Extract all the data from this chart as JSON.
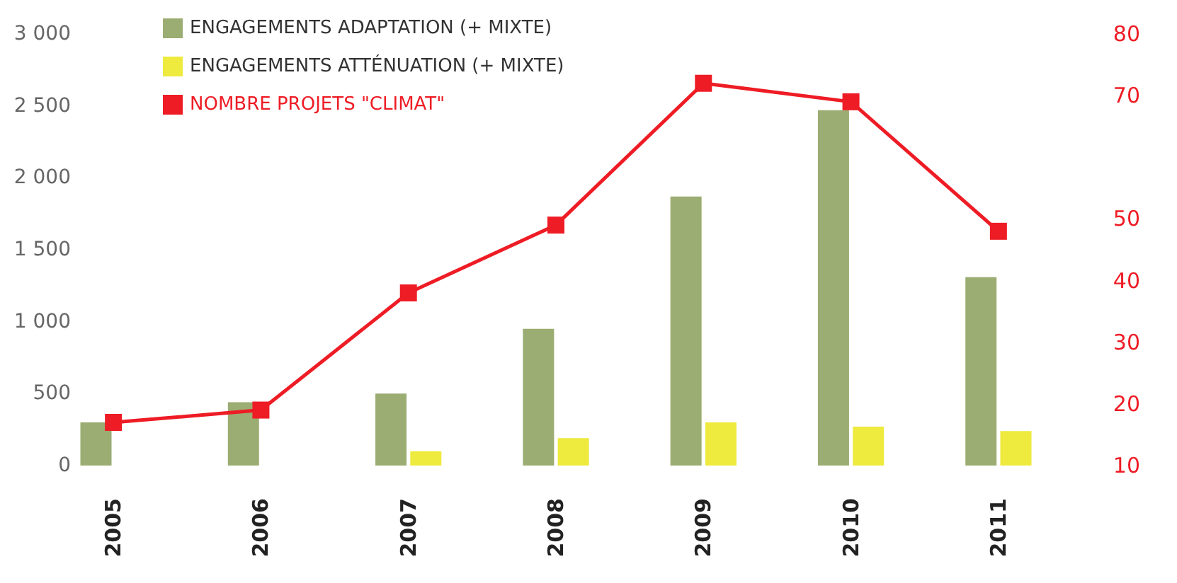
{
  "chart_data": {
    "type": "bar",
    "categories": [
      "2005",
      "2006",
      "2007",
      "2008",
      "2009",
      "2010",
      "2011"
    ],
    "series": [
      {
        "name": "ENGAGEMENTS ADAPTATION (+ MIXTE)",
        "color": "#9bad72",
        "values": [
          300,
          440,
          500,
          950,
          1870,
          2470,
          1310
        ]
      },
      {
        "name": "ENGAGEMENTS ATTÉNUATION (+ MIXTE)",
        "color": "#eeea3e",
        "values": [
          null,
          null,
          100,
          190,
          300,
          270,
          240
        ]
      },
      {
        "name": "NOMBRE PROJETS \"CLIMAT\"",
        "type": "line",
        "axis": "y2",
        "color": "#ee1c25",
        "values": [
          17,
          19,
          38,
          49,
          72,
          69,
          48
        ]
      }
    ],
    "ylim": [
      0,
      3000
    ],
    "yticks": [
      {
        "value": 0,
        "label": "0"
      },
      {
        "value": 500,
        "label": "500"
      },
      {
        "value": 1000,
        "label": "1 000"
      },
      {
        "value": 1500,
        "label": "1 500"
      },
      {
        "value": 2000,
        "label": "2 000"
      },
      {
        "value": 2500,
        "label": "2 500"
      },
      {
        "value": 3000,
        "label": "3 000"
      }
    ],
    "y2lim": [
      10,
      80
    ],
    "y2ticks": [
      10,
      20,
      30,
      40,
      50,
      70,
      80
    ],
    "grid": false,
    "legend": "top left",
    "marker": "square",
    "line_style": "solid"
  }
}
